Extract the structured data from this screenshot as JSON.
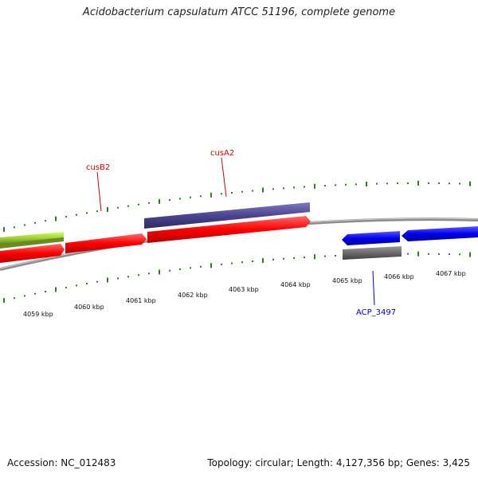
{
  "title": "Acidobacterium capsulatum ATCC 51196, complete genome",
  "footer": {
    "accession": "Accession: NC_012483",
    "summary": "Topology: circular; Length: 4,127,356 bp; Genes: 3,425"
  },
  "scale_labels": [
    "4059 kbp",
    "4060 kbp",
    "4061 kbp",
    "4062 kbp",
    "4063 kbp",
    "4064 kbp",
    "4065 kbp",
    "4066 kbp",
    "4067 kbp"
  ],
  "gene_labels": {
    "cusB2": "cusB2",
    "cusA2": "cusA2",
    "acp3497": "ACP_3497"
  },
  "colors": {
    "forward_cds": "#ff0000",
    "reverse_cds": "#0000ee",
    "gene_purple": "#4b4590",
    "gene_gray": "#6a6a6a",
    "gene_green": "#9acd32",
    "backbone": "#8c8c8c",
    "tick": "#2e7d1e",
    "label_red": "#cc0000",
    "label_blue": "#0000cc"
  }
}
